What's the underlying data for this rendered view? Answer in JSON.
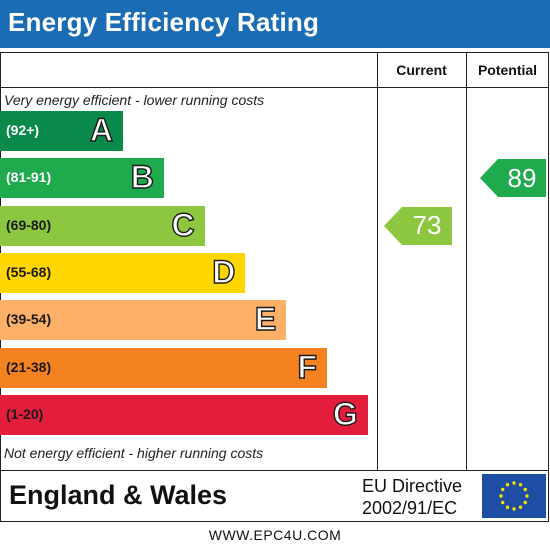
{
  "title": "Energy Efficiency Rating",
  "headers": {
    "current": "Current",
    "potential": "Potential"
  },
  "notes": {
    "top": "Very energy efficient - lower running costs",
    "bottom": "Not energy efficient - higher running costs"
  },
  "country": "England & Wales",
  "directive": {
    "line1": "EU Directive",
    "line2": "2002/91/EC"
  },
  "footer": "WWW.EPC4U.COM",
  "chart_data": {
    "type": "bar",
    "title": "Energy Efficiency Rating",
    "bands": [
      {
        "range": "(92+)",
        "letter": "A",
        "color": "#0a8a4a",
        "range_color": "#ffffff"
      },
      {
        "range": "(81-91)",
        "letter": "B",
        "color": "#1faa4e",
        "range_color": "#ffffff"
      },
      {
        "range": "(69-80)",
        "letter": "C",
        "color": "#8dc63f",
        "range_color": "#1a1a1a"
      },
      {
        "range": "(55-68)",
        "letter": "D",
        "color": "#ffd600",
        "range_color": "#1a1a1a"
      },
      {
        "range": "(39-54)",
        "letter": "E",
        "color": "#fcb068",
        "range_color": "#1a1a1a"
      },
      {
        "range": "(21-38)",
        "letter": "F",
        "color": "#f58220",
        "range_color": "#1a1a1a"
      },
      {
        "range": "(1-20)",
        "letter": "G",
        "color": "#e31d3c",
        "range_color": "#1a1a1a"
      }
    ],
    "current": {
      "value": 73,
      "band": "C",
      "color": "#8dc63f"
    },
    "potential": {
      "value": 89,
      "band": "B",
      "color": "#1faa4e"
    }
  }
}
